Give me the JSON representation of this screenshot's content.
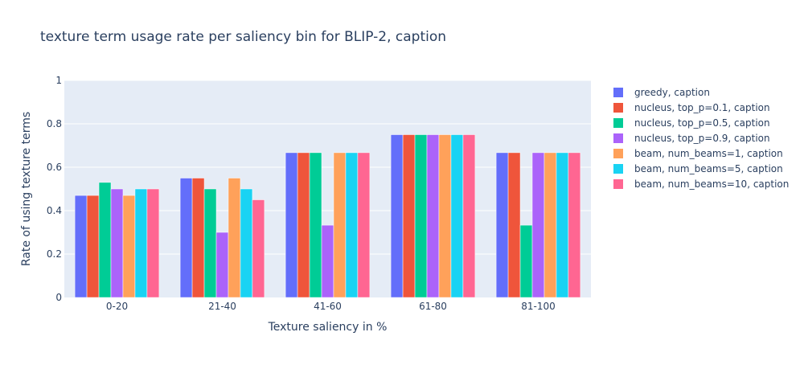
{
  "chart_data": {
    "type": "bar",
    "title": "texture term usage rate per saliency bin for BLIP-2, caption",
    "xlabel": "Texture saliency in %",
    "ylabel": "Rate of using texture terms",
    "ylim": [
      0,
      1
    ],
    "yticks": [
      0,
      0.2,
      0.4,
      0.6,
      0.8,
      1
    ],
    "ytick_labels": [
      "0",
      "0.2",
      "0.4",
      "0.6",
      "0.8",
      "1"
    ],
    "grid": true,
    "legend_position": "right",
    "categories": [
      "0-20",
      "21-40",
      "41-60",
      "61-80",
      "81-100"
    ],
    "series": [
      {
        "name": "greedy, caption",
        "color": "#636efa",
        "values": [
          0.47,
          0.55,
          0.667,
          0.75,
          0.667
        ]
      },
      {
        "name": "nucleus, top_p=0.1, caption",
        "color": "#ef553b",
        "values": [
          0.47,
          0.55,
          0.667,
          0.75,
          0.667
        ]
      },
      {
        "name": "nucleus, top_p=0.5, caption",
        "color": "#00cc96",
        "values": [
          0.53,
          0.5,
          0.667,
          0.75,
          0.333
        ]
      },
      {
        "name": "nucleus, top_p=0.9, caption",
        "color": "#ab63fa",
        "values": [
          0.5,
          0.3,
          0.333,
          0.75,
          0.667
        ]
      },
      {
        "name": "beam, num_beams=1, caption",
        "color": "#ffa15a",
        "values": [
          0.47,
          0.55,
          0.667,
          0.75,
          0.667
        ]
      },
      {
        "name": "beam, num_beams=5, caption",
        "color": "#19d3f3",
        "values": [
          0.5,
          0.5,
          0.667,
          0.75,
          0.667
        ]
      },
      {
        "name": "beam, num_beams=10, caption",
        "color": "#ff6692",
        "values": [
          0.5,
          0.45,
          0.667,
          0.75,
          0.667
        ]
      }
    ]
  }
}
